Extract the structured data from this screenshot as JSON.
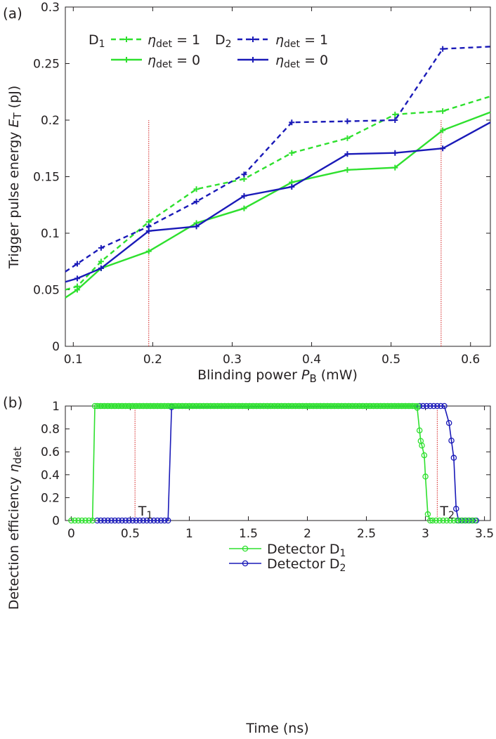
{
  "colors": {
    "D1": "#2ee02e",
    "D2": "#1a1ab8",
    "marker": "#d42020",
    "axis": "#231f20"
  },
  "chart_data": [
    {
      "type": "line",
      "panel_label": "(a)",
      "xlabel": "Blinding power",
      "xlabel_sym": "P",
      "xlabel_sub": "B",
      "xlabel_unit": "(mW)",
      "ylabel": "Trigger pulse energy",
      "ylabel_sym": "E",
      "ylabel_sub": "T",
      "ylabel_unit": "(pJ)",
      "xlim": [
        0.09,
        0.625
      ],
      "ylim": [
        0,
        0.3
      ],
      "xticks": [
        0.1,
        0.2,
        0.3,
        0.4,
        0.5,
        0.6
      ],
      "xtick_labels": [
        "0.1",
        "0.2",
        "0.3",
        "0.4",
        "0.5",
        "0.6"
      ],
      "yticks": [
        0,
        0.05,
        0.1,
        0.15,
        0.2,
        0.25,
        0.3
      ],
      "ytick_labels": [
        "0",
        "0.05",
        "0.1",
        "0.15",
        "0.2",
        "0.25",
        "0.3"
      ],
      "legend": {
        "d1_label": "D",
        "d1_sub": "1",
        "d2_label": "D",
        "d2_sub": "2",
        "eta_sym": "η",
        "eta_sub": "det",
        "eq1": " = 1",
        "eq0": " = 0"
      },
      "series": [
        {
          "detector": "D1",
          "style": "dashed",
          "x": [
            0.09,
            0.105,
            0.135,
            0.195,
            0.255,
            0.315,
            0.375,
            0.445,
            0.505,
            0.565,
            0.625
          ],
          "y": [
            0.05,
            0.053,
            0.075,
            0.11,
            0.139,
            0.148,
            0.171,
            0.184,
            0.205,
            0.208,
            0.221
          ]
        },
        {
          "detector": "D1",
          "style": "solid",
          "x": [
            0.09,
            0.105,
            0.135,
            0.195,
            0.255,
            0.315,
            0.375,
            0.445,
            0.505,
            0.565,
            0.625
          ],
          "y": [
            0.043,
            0.05,
            0.069,
            0.084,
            0.109,
            0.122,
            0.145,
            0.156,
            0.158,
            0.191,
            0.207
          ]
        },
        {
          "detector": "D2",
          "style": "dashed",
          "x": [
            0.09,
            0.105,
            0.135,
            0.195,
            0.255,
            0.315,
            0.375,
            0.445,
            0.505,
            0.565,
            0.625
          ],
          "y": [
            0.066,
            0.073,
            0.087,
            0.106,
            0.128,
            0.152,
            0.198,
            0.199,
            0.2,
            0.263,
            0.265
          ]
        },
        {
          "detector": "D2",
          "style": "solid",
          "x": [
            0.09,
            0.105,
            0.135,
            0.195,
            0.255,
            0.315,
            0.375,
            0.445,
            0.505,
            0.565,
            0.625
          ],
          "y": [
            0.057,
            0.06,
            0.069,
            0.102,
            0.106,
            0.133,
            0.141,
            0.17,
            0.171,
            0.175,
            0.198
          ]
        }
      ],
      "vlines": [
        0.195,
        0.563
      ]
    },
    {
      "type": "line",
      "panel_label": "(b)",
      "xlabel": "Time (ns)",
      "ylabel": "Detection efficiency",
      "ylabel_sym": "η",
      "ylabel_sub": "det",
      "xlim": [
        -0.05,
        3.55
      ],
      "ylim": [
        0,
        1
      ],
      "xticks": [
        0,
        0.5,
        1,
        1.5,
        2,
        2.5,
        3,
        3.5
      ],
      "xtick_labels": [
        "0",
        "0.5",
        "1",
        "1.5",
        "2",
        "2.5",
        "3",
        "3.5"
      ],
      "yticks": [
        0,
        0.2,
        0.4,
        0.6,
        0.8,
        1
      ],
      "ytick_labels": [
        "0",
        "0.2",
        "0.4",
        "0.6",
        "0.8",
        "1"
      ],
      "legend": {
        "d1_label": "Detector D",
        "d1_sub": "1",
        "d2_label": "Detector D",
        "d2_sub": "2"
      },
      "annotations": [
        {
          "text": "T",
          "sub": "1",
          "x": 0.52
        },
        {
          "text": "T",
          "sub": "2",
          "x": 3.1
        }
      ],
      "vlines": [
        0.54,
        3.1
      ],
      "series": [
        {
          "name": "Detector D1",
          "detector": "D1",
          "x": [
            0,
            0.03,
            0.06,
            0.09,
            0.12,
            0.15,
            0.18,
            0.2,
            0.22,
            0.25,
            0.28,
            0.31,
            0.34,
            0.37,
            0.4,
            0.43,
            0.46,
            0.49,
            0.52,
            0.55,
            0.58,
            0.61,
            0.64,
            0.67,
            0.7,
            0.73,
            0.76,
            0.79,
            0.82,
            0.85,
            0.88,
            0.91,
            0.94,
            0.97,
            1.0,
            1.03,
            1.06,
            1.09,
            1.12,
            1.15,
            1.18,
            1.21,
            1.24,
            1.27,
            1.3,
            1.33,
            1.36,
            1.39,
            1.42,
            1.45,
            1.48,
            1.51,
            1.54,
            1.57,
            1.6,
            1.63,
            1.66,
            1.69,
            1.72,
            1.75,
            1.78,
            1.81,
            1.84,
            1.87,
            1.9,
            1.93,
            1.96,
            1.99,
            2.02,
            2.05,
            2.08,
            2.11,
            2.14,
            2.17,
            2.2,
            2.23,
            2.26,
            2.29,
            2.32,
            2.35,
            2.38,
            2.41,
            2.44,
            2.47,
            2.5,
            2.53,
            2.56,
            2.59,
            2.62,
            2.65,
            2.68,
            2.71,
            2.74,
            2.77,
            2.8,
            2.83,
            2.86,
            2.89,
            2.93,
            2.95,
            2.96,
            2.97,
            2.99,
            3.0,
            3.02,
            3.04,
            3.06,
            3.09,
            3.12,
            3.15,
            3.18,
            3.21,
            3.24,
            3.27,
            3.3,
            3.33,
            3.36,
            3.39,
            3.42
          ],
          "y": [
            0,
            0,
            0,
            0,
            0,
            0,
            0,
            1,
            1,
            1,
            1,
            1,
            1,
            1,
            1,
            1,
            1,
            1,
            1,
            1,
            1,
            1,
            1,
            1,
            1,
            1,
            1,
            1,
            1,
            1,
            1,
            1,
            1,
            1,
            1,
            1,
            1,
            1,
            1,
            1,
            1,
            1,
            1,
            1,
            1,
            1,
            1,
            1,
            1,
            1,
            1,
            1,
            1,
            1,
            1,
            1,
            1,
            1,
            1,
            1,
            1,
            1,
            1,
            1,
            1,
            1,
            1,
            1,
            1,
            1,
            1,
            1,
            1,
            1,
            1,
            1,
            1,
            1,
            1,
            1,
            1,
            1,
            1,
            1,
            1,
            1,
            1,
            1,
            1,
            1,
            1,
            1,
            1,
            1,
            1,
            1,
            1,
            1,
            0.985,
            0.787,
            0.695,
            0.655,
            0.57,
            0.384,
            0.055,
            0,
            0,
            0,
            0,
            0,
            0,
            0,
            0,
            0,
            0,
            0,
            0,
            0,
            0
          ]
        },
        {
          "name": "Detector D2",
          "detector": "D2",
          "x": [
            0.22,
            0.25,
            0.28,
            0.31,
            0.34,
            0.37,
            0.4,
            0.43,
            0.46,
            0.49,
            0.52,
            0.55,
            0.58,
            0.61,
            0.64,
            0.67,
            0.7,
            0.73,
            0.76,
            0.79,
            0.82,
            0.85,
            2.95,
            2.98,
            3.01,
            3.04,
            3.07,
            3.1,
            3.13,
            3.16,
            3.2,
            3.22,
            3.24,
            3.26,
            3.28,
            3.31,
            3.34,
            3.37,
            3.4,
            3.43
          ],
          "y": [
            0,
            0,
            0,
            0,
            0,
            0,
            0,
            0,
            0,
            0,
            0,
            0,
            0,
            0,
            0,
            0,
            0,
            0,
            0,
            0,
            0,
            0.99,
            1,
            1,
            1,
            1,
            1,
            1,
            1,
            1,
            0.852,
            0.698,
            0.548,
            0.103,
            0,
            0,
            0,
            0,
            0,
            0
          ]
        }
      ]
    }
  ]
}
